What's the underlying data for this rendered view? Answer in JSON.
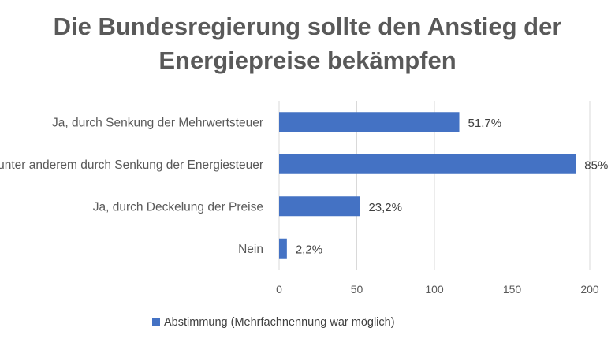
{
  "title_lines": [
    "Die Bundesregierung sollte den Anstieg der",
    "Energiepreise bekämpfen"
  ],
  "chart_data": {
    "type": "bar",
    "orientation": "horizontal",
    "title": "Die Bundesregierung sollte den Anstieg der Energiepreise bekämpfen",
    "categories": [
      "Ja, durch Senkung der Mehrwertsteuer",
      "Ja, unter anderem durch Senkung der Energiesteuer",
      "Ja, durch Deckelung der Preise",
      "Nein"
    ],
    "series": [
      {
        "name": "Abstimmung  (Mehrfachnennung war möglich)",
        "values": [
          116,
          191,
          52,
          5
        ],
        "labels": [
          "51,7%",
          "85%",
          "23,2%",
          "2,2%"
        ],
        "color": "#4472c4"
      }
    ],
    "xlim": [
      0,
      200
    ],
    "xticks": [
      0,
      50,
      100,
      150,
      200
    ],
    "grid": true,
    "legend_position": "bottom"
  }
}
